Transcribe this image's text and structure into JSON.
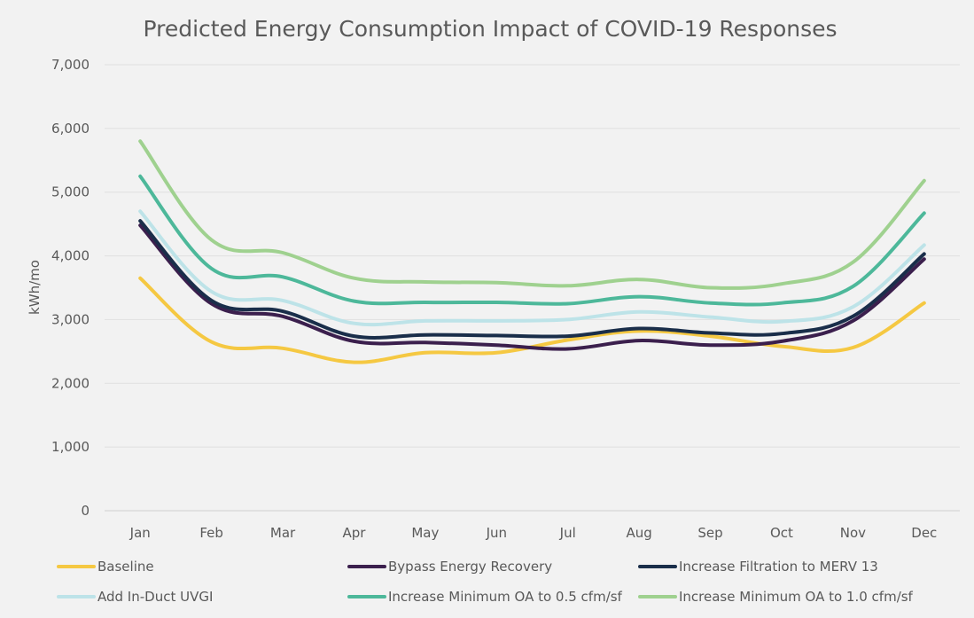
{
  "chart_data": {
    "type": "line",
    "title": "Predicted Energy Consumption Impact of COVID-19 Responses",
    "xlabel": "",
    "ylabel": "kWh/mo",
    "ylim": [
      0,
      7000
    ],
    "y_ticks": [
      0,
      1000,
      2000,
      3000,
      4000,
      5000,
      6000,
      7000
    ],
    "y_tick_labels": [
      "0",
      "1,000",
      "2,000",
      "3,000",
      "4,000",
      "5,000",
      "6,000",
      "7,000"
    ],
    "grid": "horizontal",
    "legend_position": "bottom",
    "categories": [
      "Jan",
      "Feb",
      "Mar",
      "Apr",
      "May",
      "Jun",
      "Jul",
      "Aug",
      "Sep",
      "Oct",
      "Nov",
      "Dec"
    ],
    "series": [
      {
        "name": "Baseline",
        "color": "#f5c842",
        "values": [
          3650,
          2650,
          2550,
          2330,
          2480,
          2480,
          2680,
          2820,
          2740,
          2580,
          2560,
          3260
        ]
      },
      {
        "name": "Bypass Energy Recovery",
        "color": "#3b1f4d",
        "values": [
          4480,
          3250,
          3050,
          2660,
          2640,
          2600,
          2540,
          2670,
          2600,
          2660,
          2980,
          3950
        ]
      },
      {
        "name": "Increase Filtration to MERV 13",
        "color": "#1a2e4a",
        "values": [
          4550,
          3300,
          3130,
          2740,
          2760,
          2750,
          2740,
          2860,
          2790,
          2780,
          3050,
          4030
        ]
      },
      {
        "name": "Add In-Duct UVGI",
        "color": "#bde3e8",
        "values": [
          4700,
          3440,
          3300,
          2940,
          2980,
          2980,
          3000,
          3120,
          3040,
          2970,
          3200,
          4170
        ]
      },
      {
        "name": "Increase Minimum OA to 0.5 cfm/sf",
        "color": "#4db89a",
        "values": [
          5250,
          3800,
          3670,
          3290,
          3270,
          3270,
          3250,
          3360,
          3260,
          3260,
          3520,
          4670
        ]
      },
      {
        "name": "Increase Minimum OA to 1.0 cfm/sf",
        "color": "#9fd18f",
        "values": [
          5800,
          4250,
          4050,
          3650,
          3590,
          3580,
          3530,
          3630,
          3500,
          3560,
          3900,
          5180
        ]
      }
    ]
  }
}
